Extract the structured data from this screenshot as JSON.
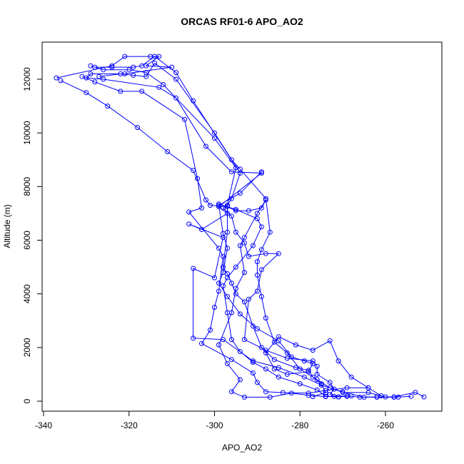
{
  "chart_data": {
    "type": "line",
    "title": "ORCAS RF01-6 APO_AO2",
    "xlabel": "APO_AO2",
    "ylabel": "Altitude (m)",
    "xlim": [
      -340,
      -250
    ],
    "ylim": [
      0,
      13000
    ],
    "x_ticks": [
      -340,
      -320,
      -300,
      -280,
      -260
    ],
    "y_ticks": [
      0,
      2000,
      4000,
      6000,
      8000,
      10000,
      12000
    ],
    "grid": false,
    "legend": "none",
    "line_color": "#0000ff",
    "marker": "open-circle",
    "series": [
      {
        "values": [
          [
            -337,
            12050
          ],
          [
            -324,
            12500
          ],
          [
            -321,
            12850
          ],
          [
            -315,
            12850
          ],
          [
            -313,
            12850
          ],
          [
            -316,
            12500
          ],
          [
            -310,
            12450
          ],
          [
            -321,
            12200
          ],
          [
            -329,
            12200
          ],
          [
            -330,
            12050
          ],
          [
            -326,
            12000
          ],
          [
            -313,
            11700
          ],
          [
            -309,
            11300
          ],
          [
            -302,
            9500
          ],
          [
            -296,
            8550
          ],
          [
            -289,
            8500
          ],
          [
            -299,
            7250
          ],
          [
            -297,
            7000
          ],
          [
            -303,
            6400
          ],
          [
            -306,
            6600
          ],
          [
            -298,
            6100
          ],
          [
            -300,
            4600
          ],
          [
            -305,
            4950
          ],
          [
            -305,
            2350
          ],
          [
            -298,
            2300
          ],
          [
            -291,
            1500
          ],
          [
            -285,
            1250
          ],
          [
            -279,
            900
          ],
          [
            -275,
            600
          ],
          [
            -270,
            350
          ],
          [
            -265,
            150
          ],
          [
            -262,
            160
          ],
          [
            -258,
            160
          ],
          [
            -253,
            330
          ],
          [
            -251,
            160
          ]
        ]
      },
      {
        "values": [
          [
            -336,
            11950
          ],
          [
            -330,
            11500
          ],
          [
            -325,
            11000
          ],
          [
            -318,
            10200
          ],
          [
            -311,
            9300
          ],
          [
            -305,
            8600
          ],
          [
            -302,
            7500
          ],
          [
            -301,
            7300
          ],
          [
            -297,
            7250
          ],
          [
            -295,
            7100
          ],
          [
            -292,
            7100
          ],
          [
            -289,
            7200
          ],
          [
            -288,
            7500
          ],
          [
            -290,
            7000
          ],
          [
            -293,
            6100
          ],
          [
            -294,
            5800
          ],
          [
            -293,
            4800
          ],
          [
            -295,
            4200
          ],
          [
            -296,
            3300
          ],
          [
            -299,
            2100
          ],
          [
            -297,
            1400
          ],
          [
            -294,
            800
          ],
          [
            -296,
            350
          ],
          [
            -293,
            150
          ],
          [
            -287,
            150
          ],
          [
            -282,
            300
          ],
          [
            -278,
            220
          ],
          [
            -274,
            170
          ],
          [
            -272,
            180
          ],
          [
            -269,
            200
          ],
          [
            -266,
            150
          ],
          [
            -262,
            150
          ],
          [
            -258,
            150
          ],
          [
            -254,
            180
          ]
        ]
      },
      {
        "values": [
          [
            -331,
            12100
          ],
          [
            -328,
            11900
          ],
          [
            -322,
            11550
          ],
          [
            -317,
            11550
          ],
          [
            -307,
            10500
          ],
          [
            -304,
            8300
          ],
          [
            -303,
            7200
          ],
          [
            -306,
            7050
          ],
          [
            -299,
            5700
          ],
          [
            -298,
            5400
          ],
          [
            -299,
            4100
          ],
          [
            -300,
            3500
          ],
          [
            -301,
            2650
          ],
          [
            -303,
            2150
          ],
          [
            -296,
            1550
          ],
          [
            -291,
            1050
          ],
          [
            -290,
            700
          ],
          [
            -288,
            350
          ],
          [
            -284,
            320
          ],
          [
            -278,
            300
          ],
          [
            -274,
            400
          ],
          [
            -269,
            500
          ],
          [
            -264,
            500
          ],
          [
            -261,
            200
          ]
        ]
      },
      {
        "values": [
          [
            -328,
            12450
          ],
          [
            -324,
            12450
          ],
          [
            -319,
            12450
          ],
          [
            -317,
            12500
          ],
          [
            -314,
            12850
          ],
          [
            -309,
            12250
          ],
          [
            -305,
            11200
          ],
          [
            -296,
            9000
          ],
          [
            -294,
            8650
          ],
          [
            -288,
            7550
          ],
          [
            -287,
            6300
          ],
          [
            -289,
            5650
          ],
          [
            -290,
            5200
          ],
          [
            -290,
            4700
          ],
          [
            -289,
            3900
          ],
          [
            -288,
            3100
          ],
          [
            -286,
            2200
          ],
          [
            -283,
            1800
          ],
          [
            -280,
            1200
          ],
          [
            -276,
            800
          ],
          [
            -273,
            500
          ],
          [
            -270,
            330
          ],
          [
            -264,
            320
          ],
          [
            -260,
            160
          ],
          [
            -257,
            150
          ]
        ]
      },
      {
        "values": [
          [
            -329,
            12500
          ],
          [
            -326,
            12350
          ],
          [
            -320,
            12350
          ],
          [
            -316,
            12250
          ],
          [
            -312,
            11800
          ],
          [
            -300,
            9800
          ],
          [
            -295,
            8700
          ],
          [
            -297,
            7300
          ],
          [
            -298,
            7200
          ],
          [
            -296,
            6900
          ],
          [
            -295,
            6300
          ],
          [
            -293,
            5900
          ],
          [
            -292,
            5400
          ],
          [
            -288,
            5500
          ],
          [
            -285,
            5500
          ],
          [
            -289,
            4900
          ],
          [
            -290,
            4100
          ],
          [
            -292,
            3800
          ],
          [
            -293,
            2300
          ],
          [
            -288,
            1900
          ],
          [
            -283,
            1600
          ],
          [
            -277,
            1500
          ],
          [
            -276,
            1300
          ],
          [
            -276,
            1000
          ],
          [
            -273,
            700
          ],
          [
            -272,
            450
          ],
          [
            -273,
            250
          ],
          [
            -271,
            160
          ]
        ]
      },
      {
        "values": [
          [
            -327,
            12100
          ],
          [
            -322,
            12200
          ],
          [
            -319,
            12150
          ],
          [
            -316,
            12100
          ],
          [
            -314,
            12600
          ],
          [
            -309,
            12000
          ],
          [
            -300,
            10000
          ],
          [
            -294,
            8500
          ],
          [
            -296,
            7550
          ],
          [
            -297,
            7300
          ],
          [
            -297,
            6300
          ],
          [
            -298,
            5000
          ],
          [
            -297,
            4750
          ],
          [
            -296,
            4400
          ],
          [
            -295,
            4000
          ],
          [
            -293,
            3700
          ],
          [
            -291,
            2800
          ],
          [
            -289,
            2000
          ],
          [
            -286,
            1550
          ],
          [
            -281,
            1250
          ],
          [
            -278,
            1150
          ],
          [
            -277,
            900
          ],
          [
            -275,
            650
          ],
          [
            -274,
            320
          ],
          [
            -277,
            170
          ]
        ]
      },
      {
        "values": [
          [
            -289,
            8550
          ],
          [
            -294,
            7750
          ],
          [
            -299,
            7300
          ],
          [
            -298,
            6250
          ],
          [
            -297,
            5700
          ],
          [
            -298,
            4800
          ],
          [
            -299,
            4400
          ],
          [
            -297,
            3900
          ],
          [
            -294,
            3250
          ],
          [
            -290,
            2700
          ],
          [
            -285,
            2250
          ],
          [
            -282,
            1650
          ],
          [
            -279,
            1500
          ],
          [
            -277,
            1400
          ],
          [
            -278,
            1100
          ],
          [
            -283,
            1000
          ],
          [
            -286,
            1200
          ],
          [
            -288,
            1800
          ],
          [
            -285,
            2400
          ],
          [
            -281,
            2100
          ],
          [
            -277,
            1900
          ],
          [
            -273,
            2250
          ],
          [
            -271,
            1500
          ],
          [
            -268,
            900
          ],
          [
            -264,
            500
          ]
        ]
      },
      {
        "values": [
          [
            -299,
            7350
          ],
          [
            -295,
            7150
          ],
          [
            -290,
            6800
          ],
          [
            -289,
            6500
          ],
          [
            -291,
            5800
          ],
          [
            -295,
            5000
          ],
          [
            -297,
            4600
          ],
          [
            -298,
            4300
          ],
          [
            -297,
            3300
          ],
          [
            -296,
            2300
          ],
          [
            -294,
            1850
          ],
          [
            -291,
            1450
          ],
          [
            -288,
            1200
          ],
          [
            -285,
            900
          ],
          [
            -280,
            650
          ],
          [
            -276,
            420
          ],
          [
            -274,
            180
          ],
          [
            -271,
            160
          ],
          [
            -268,
            200
          ],
          [
            -269,
            180
          ]
        ]
      }
    ]
  }
}
